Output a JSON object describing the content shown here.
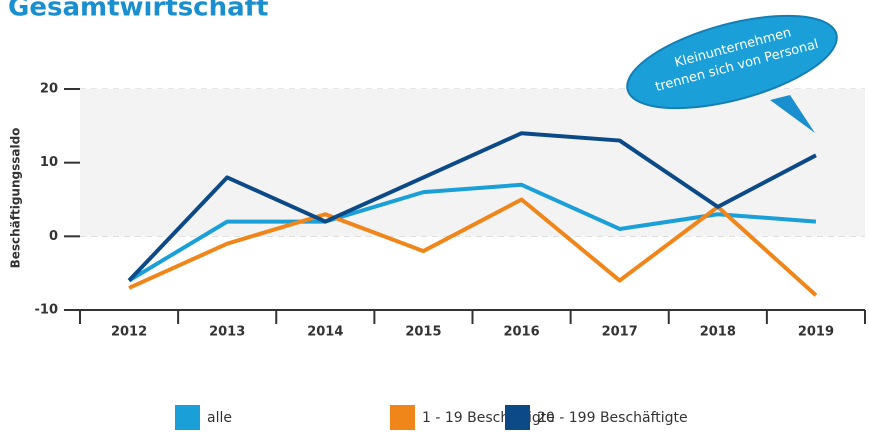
{
  "chart_data": {
    "type": "line",
    "title": "Gesamtwirtschaft",
    "y_label": "Beschäftigungssaldo",
    "annotation": [
      "Kleinunternehmen",
      "trennen sich von Personal"
    ],
    "categories": [
      "2012",
      "2013",
      "2014",
      "2015",
      "2016",
      "2017",
      "2018",
      "2019"
    ],
    "series": [
      {
        "name": "alle",
        "color": "#1a9fd9",
        "values": [
          -6,
          2,
          2,
          6,
          7,
          1,
          3,
          2
        ]
      },
      {
        "name": "1 - 19 Beschäftigte",
        "color": "#f0861a",
        "values": [
          -7,
          -1,
          3,
          -2,
          5,
          -6,
          4,
          -8
        ]
      },
      {
        "name": "20 - 199 Beschäftigte",
        "color": "#0c4a87",
        "values": [
          -6,
          8,
          2,
          8,
          14,
          13,
          4,
          11
        ]
      }
    ],
    "ylim": [
      -10,
      20
    ],
    "yticks": [
      -10,
      0,
      10,
      20
    ],
    "grid": true
  }
}
